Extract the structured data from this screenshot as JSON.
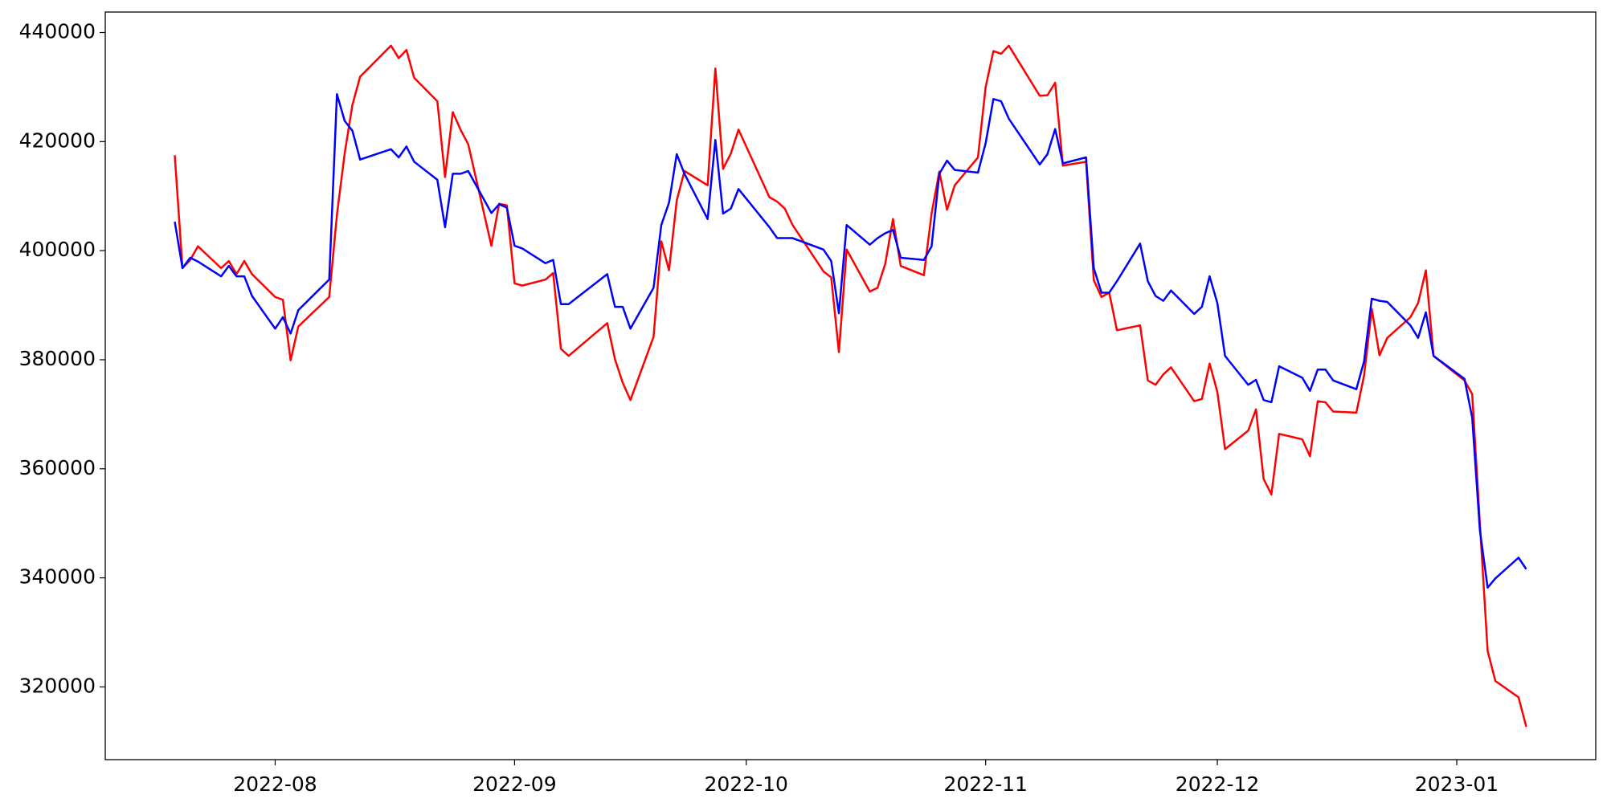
{
  "chart_data": {
    "type": "line",
    "x": [
      "2022-07-19",
      "2022-07-20",
      "2022-07-21",
      "2022-07-22",
      "2022-07-25",
      "2022-07-26",
      "2022-07-27",
      "2022-07-28",
      "2022-07-29",
      "2022-08-01",
      "2022-08-02",
      "2022-08-03",
      "2022-08-04",
      "2022-08-08",
      "2022-08-09",
      "2022-08-10",
      "2022-08-11",
      "2022-08-12",
      "2022-08-16",
      "2022-08-17",
      "2022-08-18",
      "2022-08-19",
      "2022-08-22",
      "2022-08-23",
      "2022-08-24",
      "2022-08-25",
      "2022-08-26",
      "2022-08-29",
      "2022-08-30",
      "2022-08-31",
      "2022-09-01",
      "2022-09-02",
      "2022-09-05",
      "2022-09-06",
      "2022-09-07",
      "2022-09-08",
      "2022-09-13",
      "2022-09-14",
      "2022-09-15",
      "2022-09-16",
      "2022-09-19",
      "2022-09-20",
      "2022-09-21",
      "2022-09-22",
      "2022-09-23",
      "2022-09-26",
      "2022-09-27",
      "2022-09-28",
      "2022-09-29",
      "2022-09-30",
      "2022-10-04",
      "2022-10-05",
      "2022-10-06",
      "2022-10-07",
      "2022-10-11",
      "2022-10-12",
      "2022-10-13",
      "2022-10-14",
      "2022-10-17",
      "2022-10-18",
      "2022-10-19",
      "2022-10-20",
      "2022-10-21",
      "2022-10-24",
      "2022-10-25",
      "2022-10-26",
      "2022-10-27",
      "2022-10-28",
      "2022-10-31",
      "2022-11-01",
      "2022-11-02",
      "2022-11-03",
      "2022-11-04",
      "2022-11-08",
      "2022-11-09",
      "2022-11-10",
      "2022-11-11",
      "2022-11-14",
      "2022-11-15",
      "2022-11-16",
      "2022-11-17",
      "2022-11-18",
      "2022-11-21",
      "2022-11-22",
      "2022-11-23",
      "2022-11-24",
      "2022-11-25",
      "2022-11-28",
      "2022-11-29",
      "2022-11-30",
      "2022-12-01",
      "2022-12-02",
      "2022-12-05",
      "2022-12-06",
      "2022-12-07",
      "2022-12-08",
      "2022-12-09",
      "2022-12-12",
      "2022-12-13",
      "2022-12-14",
      "2022-12-15",
      "2022-12-16",
      "2022-12-19",
      "2022-12-20",
      "2022-12-21",
      "2022-12-22",
      "2022-12-23",
      "2022-12-26",
      "2022-12-27",
      "2022-12-28",
      "2022-12-29",
      "2023-01-02",
      "2023-01-03",
      "2023-01-04",
      "2023-01-05",
      "2023-01-06",
      "2023-01-09",
      "2023-01-10"
    ],
    "series": [
      {
        "color": "#ff0000",
        "values": [
          417500,
          396800,
          398300,
          400800,
          396800,
          398100,
          395700,
          398100,
          395700,
          391500,
          391000,
          379900,
          386100,
          391500,
          406600,
          417800,
          426700,
          431900,
          437600,
          435300,
          436800,
          431700,
          427400,
          413500,
          425400,
          422200,
          419500,
          400900,
          408600,
          408300,
          394000,
          393600,
          394700,
          395900,
          382000,
          380700,
          386700,
          380100,
          375800,
          372600,
          384200,
          401700,
          396400,
          409200,
          414600,
          412000,
          433400,
          415000,
          417800,
          422200,
          409800,
          409000,
          407700,
          404700,
          396200,
          395100,
          381400,
          400200,
          392500,
          393200,
          397600,
          405800,
          397200,
          395500,
          406800,
          414500,
          407500,
          412000,
          417100,
          430000,
          436600,
          436100,
          437600,
          428400,
          428500,
          430800,
          415600,
          416300,
          394600,
          391500,
          392300,
          385400,
          386300,
          376200,
          375400,
          377300,
          378600,
          372400,
          372800,
          379300,
          374100,
          363600,
          367000,
          370900,
          358100,
          355300,
          366400,
          365400,
          362300,
          372400,
          372200,
          370500,
          370300,
          377100,
          389300,
          380800,
          384000,
          387800,
          390400,
          396400,
          380700,
          376200,
          373700,
          349900,
          326600,
          321100,
          318100,
          312700
        ]
      },
      {
        "color": "#0000ff",
        "values": [
          405300,
          396800,
          398700,
          398000,
          395300,
          397200,
          395300,
          395300,
          391700,
          385700,
          387800,
          384800,
          389100,
          394700,
          428700,
          423800,
          422000,
          416700,
          418600,
          417100,
          419100,
          416300,
          413000,
          404300,
          414100,
          414100,
          414600,
          406900,
          408500,
          407900,
          400900,
          400400,
          397700,
          398300,
          390200,
          390200,
          395700,
          389700,
          389700,
          385700,
          393200,
          404700,
          408800,
          417700,
          414100,
          405800,
          420300,
          406800,
          407700,
          411300,
          404300,
          402300,
          402300,
          402300,
          400200,
          398100,
          388500,
          404700,
          401100,
          402300,
          403200,
          403800,
          398700,
          398300,
          400800,
          414100,
          416500,
          414800,
          414300,
          419700,
          427800,
          427400,
          424200,
          415800,
          417700,
          422300,
          416000,
          417100,
          396800,
          392300,
          392300,
          394400,
          401300,
          394400,
          391700,
          390800,
          392700,
          388400,
          389700,
          395300,
          390400,
          380700,
          375400,
          376300,
          372600,
          372200,
          378800,
          376700,
          374300,
          378200,
          378200,
          376200,
          374600,
          379700,
          391200,
          390800,
          390600,
          386300,
          384000,
          388700,
          380700,
          376500,
          369400,
          348700,
          338200,
          339900,
          343700,
          341600
        ]
      }
    ],
    "xlim": [
      "2022-07-10",
      "2023-01-19"
    ],
    "xticks": [
      {
        "value": "2022-08-01",
        "label": "2022-08"
      },
      {
        "value": "2022-09-01",
        "label": "2022-09"
      },
      {
        "value": "2022-10-01",
        "label": "2022-10"
      },
      {
        "value": "2022-11-01",
        "label": "2022-11"
      },
      {
        "value": "2022-12-01",
        "label": "2022-12"
      },
      {
        "value": "2023-01-01",
        "label": "2023-01"
      }
    ],
    "ylim": [
      306667,
      443755
    ],
    "yticks": [
      320000,
      340000,
      360000,
      380000,
      400000,
      420000,
      440000
    ],
    "grid": false
  }
}
